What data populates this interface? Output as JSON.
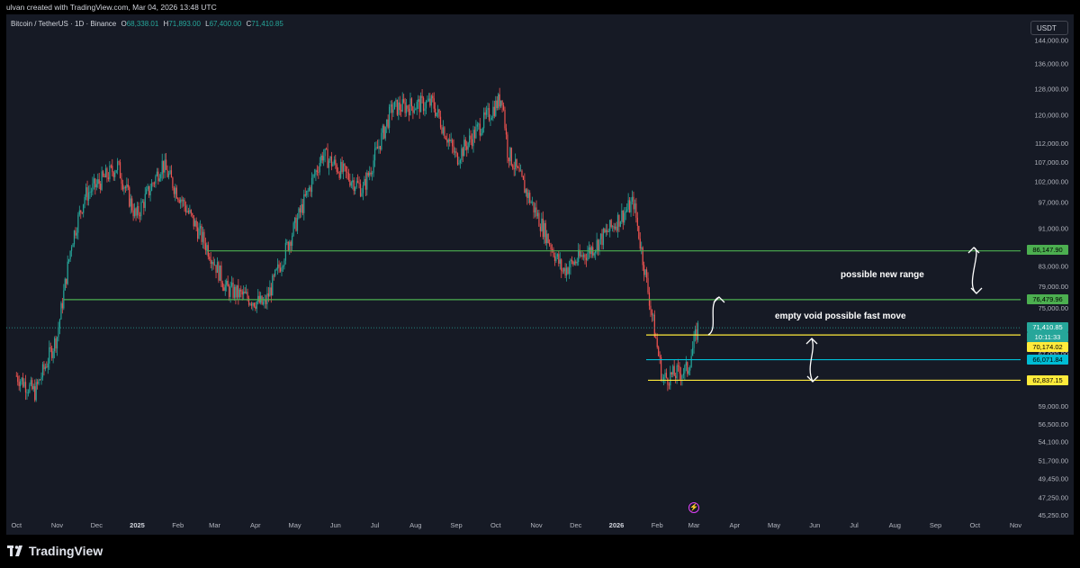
{
  "header": {
    "attribution": "ulvan created with TradingView.com, Mar 04, 2026 13:48 UTC"
  },
  "legend": {
    "symbol": "Bitcoin / TetherUS · 1D · Binance",
    "o_label": "O",
    "o_value": "68,338.01",
    "h_label": "H",
    "h_value": "71,893.00",
    "l_label": "L",
    "l_value": "67,400.00",
    "c_label": "C",
    "c_value": "71,410.85"
  },
  "currency_button": "USDT",
  "annotations": {
    "range_label": "possible new range",
    "void_label": "empty void possible fast move"
  },
  "price_tags": {
    "resistance_upper": "86,147.90",
    "resistance_lower": "76,479.96",
    "last_price": "71,410.85",
    "countdown": "10:11:33",
    "support_upper": "70,174.02",
    "mid_level": "66,071.84",
    "support_lower": "62,837.15"
  },
  "colors": {
    "up": "#26a69a",
    "down": "#ef5350",
    "green_line": "#4caf50",
    "yellow_line": "#ffeb3b",
    "cyan_line": "#00bcd4",
    "last_price_bg": "#26a69a"
  },
  "footer": {
    "brand": "TradingView"
  },
  "chart_data": {
    "type": "candlestick",
    "symbol": "Bitcoin / TetherUS",
    "interval": "1D",
    "exchange": "Binance",
    "y_scale": "log",
    "ylim": [
      45250,
      152000
    ],
    "y_ticks": [
      "144,000.00",
      "136,000.00",
      "128,000.00",
      "120,000.00",
      "112,000.00",
      "107,000.00",
      "102,000.00",
      "97,000.00",
      "91,000.00",
      "87,000.00",
      "83,000.00",
      "79,000.00",
      "75,000.00",
      "71,000.00",
      "67,000.00",
      "63,000.00",
      "59,000.00",
      "56,500.00",
      "54,100.00",
      "51,700.00",
      "49,450.00",
      "47,250.00",
      "45,250.00"
    ],
    "x_ticks": [
      "Oct",
      "Nov",
      "Dec",
      "2025",
      "Feb",
      "Mar",
      "Apr",
      "May",
      "Jun",
      "Jul",
      "Aug",
      "Sep",
      "Oct",
      "Nov",
      "Dec",
      "2026",
      "Feb",
      "Mar",
      "Apr",
      "May",
      "Jun",
      "Jul",
      "Aug",
      "Sep",
      "Oct",
      "Nov"
    ],
    "price_path_anchors": [
      {
        "date": "2024-10-01",
        "price": 63500
      },
      {
        "date": "2024-10-15",
        "price": 61000
      },
      {
        "date": "2024-11-01",
        "price": 70000
      },
      {
        "date": "2024-11-12",
        "price": 88000
      },
      {
        "date": "2024-11-22",
        "price": 98500
      },
      {
        "date": "2024-12-17",
        "price": 106000
      },
      {
        "date": "2024-12-31",
        "price": 93500
      },
      {
        "date": "2025-01-20",
        "price": 106500
      },
      {
        "date": "2025-02-25",
        "price": 86000
      },
      {
        "date": "2025-03-10",
        "price": 78500
      },
      {
        "date": "2025-04-08",
        "price": 75500
      },
      {
        "date": "2025-05-22",
        "price": 109000
      },
      {
        "date": "2025-06-22",
        "price": 100000
      },
      {
        "date": "2025-07-14",
        "price": 122000
      },
      {
        "date": "2025-08-14",
        "price": 123500
      },
      {
        "date": "2025-09-01",
        "price": 108000
      },
      {
        "date": "2025-10-06",
        "price": 125500
      },
      {
        "date": "2025-10-10",
        "price": 110000
      },
      {
        "date": "2025-11-21",
        "price": 82000
      },
      {
        "date": "2025-12-15",
        "price": 87000
      },
      {
        "date": "2026-01-14",
        "price": 97000
      },
      {
        "date": "2026-02-05",
        "price": 63000
      },
      {
        "date": "2026-02-24",
        "price": 64500
      },
      {
        "date": "2026-03-04",
        "price": 71410.85
      }
    ],
    "horizontal_levels": [
      {
        "price": 86147.9,
        "color": "green"
      },
      {
        "price": 76479.96,
        "color": "green"
      },
      {
        "price": 70174.02,
        "color": "yellow"
      },
      {
        "price": 66071.84,
        "color": "cyan"
      },
      {
        "price": 62837.15,
        "color": "yellow"
      }
    ],
    "last_price": 71410.85
  }
}
